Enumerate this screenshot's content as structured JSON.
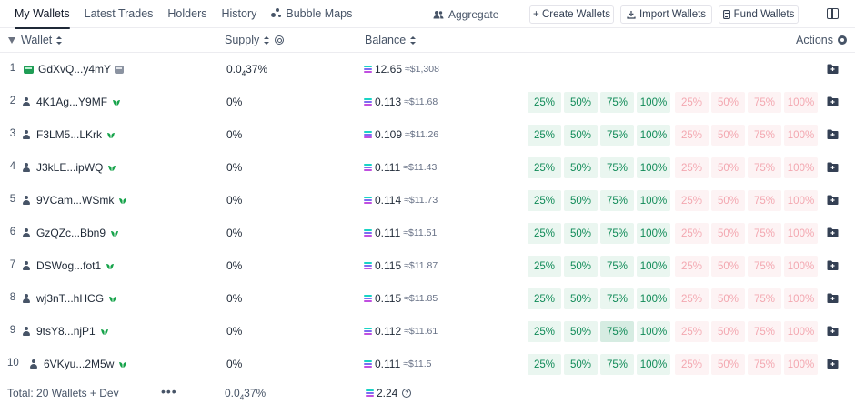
{
  "tabs": [
    {
      "label": "My Wallets",
      "active": true
    },
    {
      "label": "Latest Trades"
    },
    {
      "label": "Holders"
    },
    {
      "label": "History"
    },
    {
      "label": "Bubble Maps",
      "icon": "bubble-icon"
    }
  ],
  "toolbar": {
    "aggregate": "Aggregate",
    "create_wallets": "+ Create Wallets",
    "import_wallets": "Import Wallets",
    "fund_wallets": "Fund Wallets"
  },
  "columns": {
    "wallet": "Wallet",
    "supply": "Supply",
    "balance": "Balance",
    "actions": "Actions"
  },
  "colors": {
    "buy_text": "#0f8a57",
    "buy_bg": "#eaf6f0",
    "sell_text": "#f3a7b0",
    "sell_bg": "#fdf3f4",
    "dev_green": "#1f9d55"
  },
  "buy_labels": [
    "25%",
    "50%",
    "75%",
    "100%"
  ],
  "sell_labels": [
    "25%",
    "50%",
    "75%",
    "100%"
  ],
  "rows": [
    {
      "idx": "1",
      "name": "GdXvQ...y4mY",
      "dev": true,
      "supply_pre": "0.0",
      "supply_sub": "4",
      "supply_post": "37%",
      "balance": "12.65",
      "usd": "≈$1,308"
    },
    {
      "idx": "2",
      "name": "4K1Ag...Y9MF",
      "supply": "0%",
      "balance": "0.113",
      "usd": "≈$11.68"
    },
    {
      "idx": "3",
      "name": "F3LM5...LKrk",
      "supply": "0%",
      "balance": "0.109",
      "usd": "≈$11.26"
    },
    {
      "idx": "4",
      "name": "J3kLE...ipWQ",
      "supply": "0%",
      "balance": "0.111",
      "usd": "≈$11.43"
    },
    {
      "idx": "5",
      "name": "9VCam...WSmk",
      "supply": "0%",
      "balance": "0.114",
      "usd": "≈$11.73"
    },
    {
      "idx": "6",
      "name": "GzQZc...Bbn9",
      "supply": "0%",
      "balance": "0.111",
      "usd": "≈$11.51"
    },
    {
      "idx": "7",
      "name": "DSWog...fot1",
      "supply": "0%",
      "balance": "0.115",
      "usd": "≈$11.87"
    },
    {
      "idx": "8",
      "name": "wj3nT...hHCG",
      "supply": "0%",
      "balance": "0.115",
      "usd": "≈$11.85"
    },
    {
      "idx": "9",
      "name": "9tsY8...njP1",
      "supply": "0%",
      "balance": "0.112",
      "usd": "≈$11.61"
    },
    {
      "idx": "10",
      "name": "6VKyu...2M5w",
      "supply": "0%",
      "balance": "0.111",
      "usd": "≈$11.5"
    }
  ],
  "footer": {
    "total": "Total: 20 Wallets + Dev",
    "more": "•••",
    "supply_pre": "0.0",
    "supply_sub": "4",
    "supply_post": "37%",
    "balance": "2.24"
  }
}
